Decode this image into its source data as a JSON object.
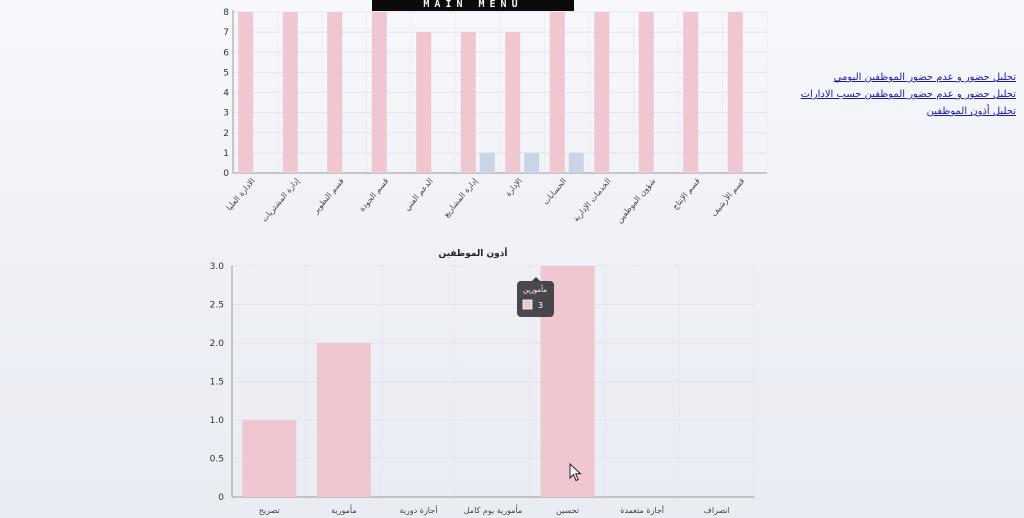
{
  "menu": {
    "label": "MAIN MENU"
  },
  "links": [
    "تحليل حضور و عدم حضور الموظفين اليومي",
    "تحليل حضور و عدم حضور الموظفين حسب الادارات",
    "تحليل أذون الموظفين"
  ],
  "tooltip": {
    "title": "مأمورين",
    "value": "3"
  },
  "chart_data": [
    {
      "type": "bar",
      "categories": [
        "الادارة العليا",
        "إدارة المشتريات",
        "قسم التطوير",
        "قسم الجودة",
        "الدعم الفني",
        "إدارة المشاريع",
        "الإدارة",
        "الحسابات",
        "الخدمات الإدارية",
        "شؤون الموظفين",
        "قسم الإنتاج",
        "قسم الأرشيف"
      ],
      "series": [
        {
          "color": "#f0c6d0",
          "values": [
            8,
            8,
            8,
            8,
            7,
            7,
            7,
            8,
            8,
            8,
            8,
            8
          ]
        },
        {
          "color": "#c9d5e6",
          "values": [
            0,
            0,
            0,
            0,
            0,
            1,
            1,
            1,
            0,
            0,
            0,
            0
          ]
        }
      ],
      "ylim": [
        0,
        8
      ],
      "yticks": [
        "0",
        "1",
        "2",
        "3",
        "4",
        "5",
        "6",
        "7",
        "8"
      ],
      "grid": true
    },
    {
      "type": "bar",
      "title": "أذون الموظفين",
      "categories": [
        "تصريح",
        "مأمورية",
        "أجازة دورية",
        "مأمورية يوم كامل",
        "تحسين",
        "أجازة متعمدة",
        "انصراف"
      ],
      "values": [
        1,
        2,
        0,
        0,
        3,
        0,
        0
      ],
      "color": "#f0c6d0",
      "ylim": [
        0,
        3
      ],
      "yticks": [
        "0",
        "0.5",
        "1.0",
        "1.5",
        "2.0",
        "2.5",
        "3.0"
      ],
      "grid": true
    }
  ]
}
